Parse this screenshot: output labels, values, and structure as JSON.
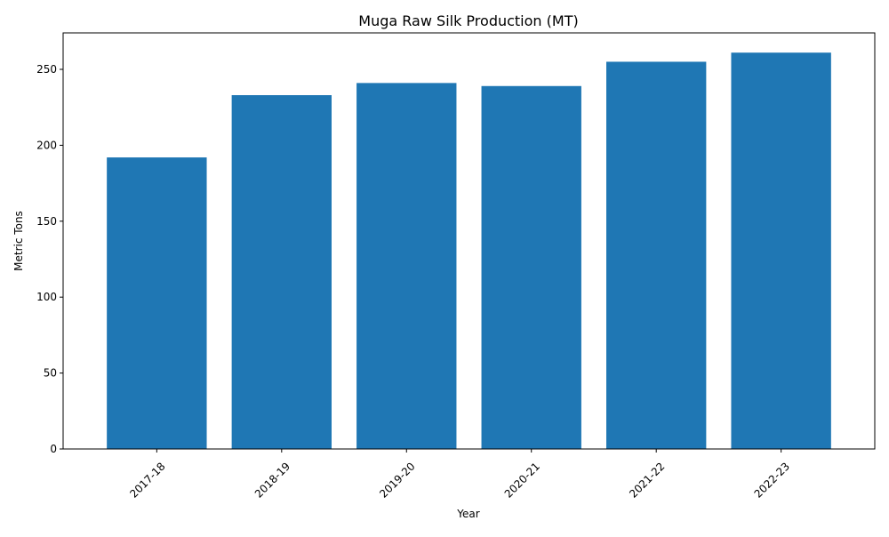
{
  "chart_data": {
    "type": "bar",
    "title": "Muga Raw Silk Production (MT)",
    "xlabel": "Year",
    "ylabel": "Metric Tons",
    "categories": [
      "2017-18",
      "2018-19",
      "2019-20",
      "2020-21",
      "2021-22",
      "2022-23"
    ],
    "values": [
      192,
      233,
      241,
      239,
      255,
      261
    ],
    "ylim": [
      0,
      274
    ],
    "yticks": [
      0,
      50,
      100,
      150,
      200,
      250
    ],
    "grid": false,
    "legend": "none",
    "bar_color": "#1f77b4",
    "axis_color": "#000000",
    "x_tick_rotation_deg": 45
  }
}
